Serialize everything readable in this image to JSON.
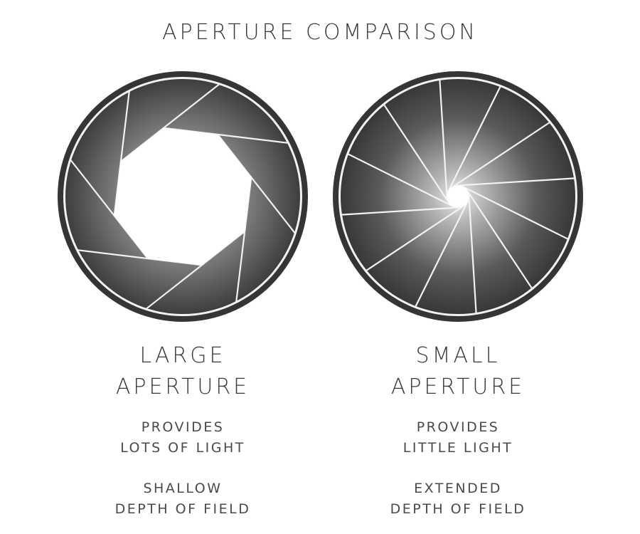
{
  "title": "APERTURE COMPARISON",
  "colors": {
    "ring": "#353535",
    "blade_light": "#ededed",
    "blade_dark": "#3a3a3a",
    "blade_edge": "#f2f2f2",
    "text": "#3a3a3a"
  },
  "large": {
    "heading_line1": "LARGE",
    "heading_line2": "APERTURE",
    "desc1_line1": "PROVIDES",
    "desc1_line2": "LOTS OF LIGHT",
    "desc2_line1": "SHALLOW",
    "desc2_line2": "DEPTH OF FIELD"
  },
  "small": {
    "heading_line1": "SMALL",
    "heading_line2": "APERTURE",
    "desc1_line1": "PROVIDES",
    "desc1_line2": "LITTLE LIGHT",
    "desc2_line1": "EXTENDED",
    "desc2_line2": "DEPTH OF FIELD"
  }
}
